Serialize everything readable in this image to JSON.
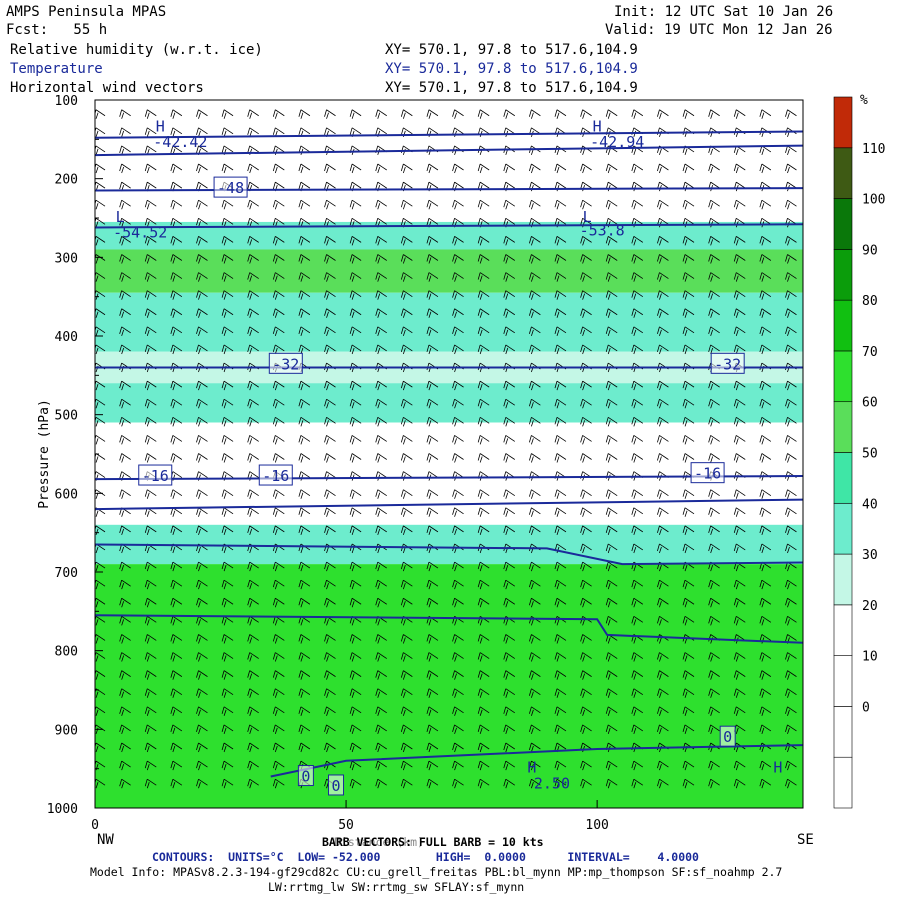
{
  "header": {
    "title": "AMPS Peninsula MPAS",
    "fcst": "Fcst:   55 h",
    "init": "Init: 12 UTC Sat 10 Jan 26",
    "valid": "Valid: 19 UTC Mon 12 Jan 26",
    "field1": "Relative humidity (w.r.t. ice)",
    "field2": "Temperature",
    "field3": "Horizontal wind vectors",
    "xy1": "XY= 570.1, 97.8 to 517.6,104.9",
    "xy2": "XY= 570.1, 97.8 to 517.6,104.9",
    "xy3": "XY= 570.1, 97.8 to 517.6,104.9"
  },
  "footer": {
    "barb": "BARB VECTORS: FULL BARB = 10 kts",
    "xlabel_overlap": "Distance (km)",
    "contours": "CONTOURS:  UNITS=°C  LOW= -52.000        HIGH=  0.0000      INTERVAL=    4.0000",
    "model1": "Model Info: MPASv8.2.3-194-gf29cd82c CU:cu_grell_freitas PBL:bl_mynn MP:mp_thompson SF:sf_noahmp 2.7",
    "model2": "LW:rrtmg_lw SW:rrtmg_sw SFLAY:sf_mynn"
  },
  "axes": {
    "ylabel": "Pressure (hPa)",
    "left_end": "NW",
    "right_end": "SE"
  },
  "colors": {
    "plot_bg": "#ffffff",
    "contour": "#1a2a9a",
    "barb": "#000000"
  },
  "chart_data": {
    "type": "heatmap",
    "description_x": "distance along cross-section (km)",
    "xlim": [
      0,
      141
    ],
    "ylim": [
      1000,
      100
    ],
    "x_ticks": [
      0,
      50,
      100
    ],
    "x_tick_labels": [
      "0",
      "50",
      "100"
    ],
    "y_ticks": [
      100,
      200,
      300,
      400,
      500,
      600,
      700,
      800,
      900,
      1000
    ],
    "y_tick_labels": [
      "100",
      "200",
      "300",
      "400",
      "500",
      "600",
      "700",
      "800",
      "900",
      "1000"
    ],
    "colorbar": {
      "unit": "%",
      "levels": [
        -10,
        0,
        10,
        20,
        30,
        40,
        50,
        60,
        70,
        80,
        90,
        100,
        110,
        120
      ],
      "labels": [
        "0",
        "10",
        "20",
        "30",
        "40",
        "50",
        "60",
        "70",
        "80",
        "90",
        "100",
        "110"
      ],
      "colors": [
        "#ffffff",
        "#ffffff",
        "#ffffff",
        "#ffffff",
        "#c4f7e6",
        "#6deccd",
        "#3fe6a6",
        "#5ade5a",
        "#2ee02e",
        "#11c011",
        "#0b9d0b",
        "#0a780a",
        "#3e5a14",
        "#c12a08"
      ]
    },
    "rh_bands": [
      {
        "p_top": 255,
        "p_bot": 290,
        "rh": 45
      },
      {
        "p_top": 290,
        "p_bot": 345,
        "rh": 65
      },
      {
        "p_top": 345,
        "p_bot": 420,
        "rh": 45
      },
      {
        "p_top": 420,
        "p_bot": 460,
        "rh": 35
      },
      {
        "p_top": 460,
        "p_bot": 510,
        "rh": 42
      },
      {
        "p_top": 510,
        "p_bot": 640,
        "rh": 15
      },
      {
        "p_top": 640,
        "p_bot": 690,
        "rh": 40
      },
      {
        "p_top": 690,
        "p_bot": 1000,
        "rh": 70
      }
    ],
    "temperature_contours": [
      {
        "value": -42,
        "points": [
          [
            0,
            148
          ],
          [
            141,
            140
          ]
        ]
      },
      {
        "value": -44,
        "points": [
          [
            0,
            170
          ],
          [
            141,
            158
          ]
        ]
      },
      {
        "value": -48,
        "points": [
          [
            0,
            215
          ],
          [
            141,
            212
          ]
        ]
      },
      {
        "value": -52,
        "points": [
          [
            0,
            262
          ],
          [
            141,
            258
          ]
        ]
      },
      {
        "value": -32,
        "points": [
          [
            0,
            440
          ],
          [
            141,
            440
          ]
        ]
      },
      {
        "value": -16,
        "points": [
          [
            0,
            582
          ],
          [
            141,
            578
          ]
        ]
      },
      {
        "value": -12,
        "points": [
          [
            0,
            620
          ],
          [
            141,
            608
          ]
        ]
      },
      {
        "value": -8,
        "points": [
          [
            0,
            665
          ],
          [
            90,
            670
          ],
          [
            105,
            690
          ],
          [
            141,
            688
          ]
        ]
      },
      {
        "value": -4,
        "points": [
          [
            0,
            755
          ],
          [
            100,
            760
          ],
          [
            102,
            780
          ],
          [
            141,
            790
          ]
        ]
      },
      {
        "value": 0,
        "points": [
          [
            35,
            960
          ],
          [
            50,
            940
          ],
          [
            100,
            925
          ],
          [
            141,
            920
          ]
        ]
      }
    ],
    "contour_labels": [
      {
        "x": 27,
        "p": 212,
        "text": "-48"
      },
      {
        "x": 38,
        "p": 436,
        "text": "-32"
      },
      {
        "x": 126,
        "p": 436,
        "text": "-32"
      },
      {
        "x": 12,
        "p": 578,
        "text": "-16"
      },
      {
        "x": 36,
        "p": 578,
        "text": "-16"
      },
      {
        "x": 122,
        "p": 575,
        "text": "-16"
      },
      {
        "x": 42,
        "p": 960,
        "text": "0"
      },
      {
        "x": 48,
        "p": 972,
        "text": "0"
      },
      {
        "x": 126,
        "p": 910,
        "text": "0"
      }
    ],
    "extrema_labels": [
      {
        "x": 13,
        "p": 140,
        "text": "H"
      },
      {
        "x": 17,
        "p": 160,
        "text": "-42.42"
      },
      {
        "x": 100,
        "p": 140,
        "text": "H"
      },
      {
        "x": 104,
        "p": 160,
        "text": "-42.94"
      },
      {
        "x": 5,
        "p": 255,
        "text": "L"
      },
      {
        "x": 9,
        "p": 275,
        "text": "-54.52"
      },
      {
        "x": 98,
        "p": 255,
        "text": "L"
      },
      {
        "x": 101,
        "p": 272,
        "text": "-53.8"
      },
      {
        "x": 87,
        "p": 955,
        "text": "H"
      },
      {
        "x": 91,
        "p": 975,
        "text": "2.50"
      },
      {
        "x": 136,
        "p": 955,
        "text": "H"
      }
    ]
  }
}
